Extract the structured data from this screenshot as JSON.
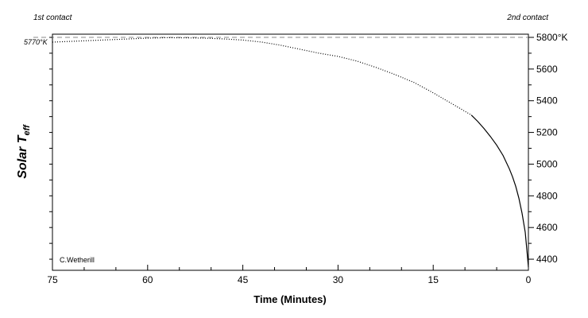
{
  "chart_data": {
    "type": "line",
    "ylabel_main": "Solar T",
    "ylabel_sub": "eff",
    "xlabel": "Time (Minutes)",
    "xlim": [
      75,
      0
    ],
    "ylim": [
      4330,
      5820
    ],
    "x_ticks": [
      "75",
      "60",
      "45",
      "30",
      "15",
      "0"
    ],
    "x_tick_values": [
      75,
      60,
      45,
      30,
      15,
      0
    ],
    "y_ticks": [
      "4400",
      "4600",
      "4800",
      "5000",
      "5200",
      "5400",
      "5600",
      "5800°K"
    ],
    "y_tick_values": [
      4400,
      4600,
      4800,
      5000,
      5200,
      5400,
      5600,
      5800
    ],
    "reference_line": {
      "value": 5800,
      "style": "dashed"
    },
    "left_annotation": "5770°K",
    "left_annotation_value": 5770,
    "top_left_label": "1st contact",
    "top_right_label": "2nd contact",
    "credit": "C.Wetherill",
    "grid": false,
    "series": [
      {
        "style": "dotted",
        "x": [
          75,
          72,
          69,
          66,
          63,
          60,
          57,
          54,
          51,
          48,
          45,
          42,
          39,
          36,
          33,
          30,
          27,
          24,
          21,
          18,
          15,
          12,
          9
        ],
        "y": [
          5770,
          5775,
          5780,
          5785,
          5790,
          5795,
          5798,
          5797,
          5795,
          5790,
          5783,
          5770,
          5750,
          5725,
          5700,
          5680,
          5650,
          5610,
          5565,
          5515,
          5450,
          5380,
          5310
        ]
      },
      {
        "style": "solid",
        "x": [
          9,
          8,
          7,
          6,
          5,
          4,
          3,
          2.5,
          2,
          1.5,
          1,
          0.5,
          0.2,
          0
        ],
        "y": [
          5310,
          5270,
          5225,
          5175,
          5120,
          5055,
          4970,
          4920,
          4860,
          4785,
          4690,
          4570,
          4440,
          4350
        ]
      }
    ]
  }
}
